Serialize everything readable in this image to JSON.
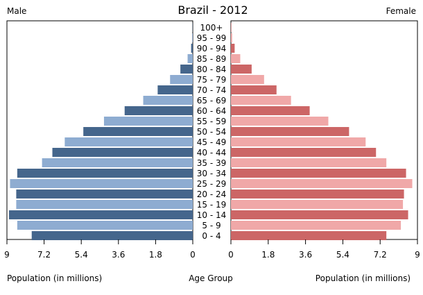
{
  "chart_data": {
    "type": "bar",
    "orientation": "horizontal-pyramid",
    "title": "Brazil - 2012",
    "left_label": "Male",
    "right_label": "Female",
    "xlabel_left": "Population (in millions)",
    "xlabel_center": "Age Group",
    "xlabel_right": "Population (in millions)",
    "xlim": [
      0,
      9
    ],
    "xticks": [
      "9",
      "7.2",
      "5.4",
      "3.6",
      "1.8",
      "0",
      "0",
      "1.8",
      "3.6",
      "5.4",
      "7.2",
      "9"
    ],
    "tick_values_left": [
      9,
      7.2,
      5.4,
      3.6,
      1.8,
      0
    ],
    "tick_values_right": [
      0,
      1.8,
      3.6,
      5.4,
      7.2,
      9
    ],
    "categories": [
      "100+",
      "95 - 99",
      "90 - 94",
      "85 - 89",
      "80 - 84",
      "75 - 79",
      "70 - 74",
      "65 - 69",
      "60 - 64",
      "55 - 59",
      "50 - 54",
      "45 - 49",
      "40 - 44",
      "35 - 39",
      "30 - 34",
      "25 - 29",
      "20 - 24",
      "15 - 19",
      "10 - 14",
      "5 - 9",
      "0 - 4"
    ],
    "series": [
      {
        "name": "Male",
        "side": "left",
        "colors": [
          "#45668c",
          "#8eacd1"
        ],
        "values": [
          0.01,
          0.03,
          0.08,
          0.25,
          0.6,
          1.1,
          1.7,
          2.4,
          3.3,
          4.3,
          5.3,
          6.2,
          6.8,
          7.3,
          8.5,
          8.85,
          8.55,
          8.55,
          8.9,
          8.5,
          7.8
        ]
      },
      {
        "name": "Female",
        "side": "right",
        "colors": [
          "#cc6666",
          "#f0a8a8"
        ],
        "values": [
          0.02,
          0.06,
          0.18,
          0.45,
          1.0,
          1.6,
          2.2,
          2.9,
          3.8,
          4.7,
          5.7,
          6.5,
          7.0,
          7.5,
          8.45,
          8.75,
          8.35,
          8.3,
          8.55,
          8.2,
          7.5
        ]
      }
    ],
    "grid": false
  }
}
